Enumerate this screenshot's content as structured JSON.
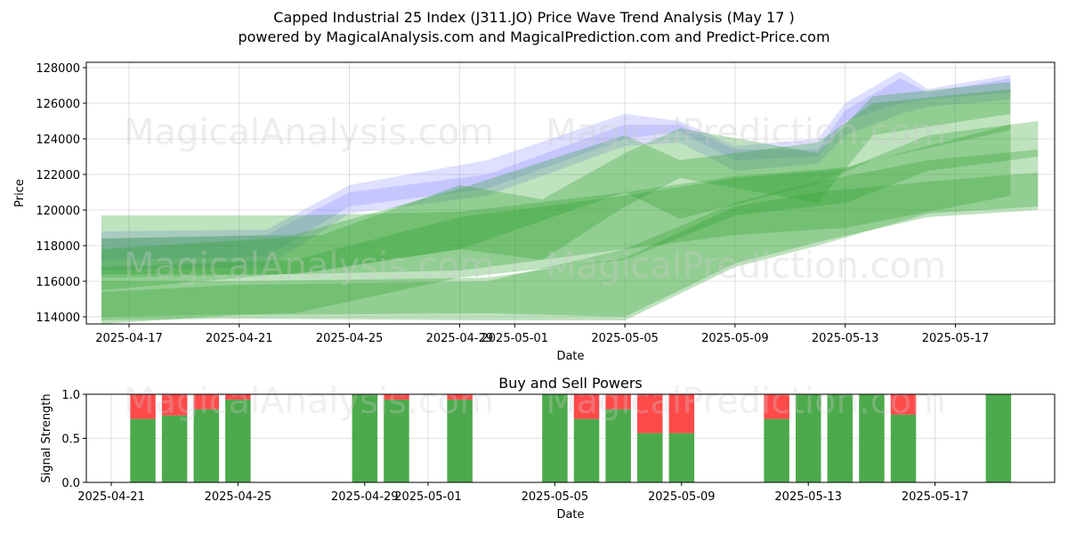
{
  "title_line1": "Capped Industrial 25 Index (J311.JO) Price Wave Trend Analysis (May 17 )",
  "title_line2": "powered by MagicalAnalysis.com and MagicalPrediction.com and Predict-Price.com",
  "watermarks": [
    "MagicalAnalysis.com",
    "MagicalPrediction.com",
    "MagicalAnalysis.com",
    "MagicalPrediction.com",
    "MagicalAnalysis.com",
    "MagicalPrediction.com"
  ],
  "colors": {
    "green": "#2ca02c",
    "blue": "#6f6fff",
    "buy": "#4caa4c",
    "sell": "#ff4a4a"
  },
  "chart_data": [
    {
      "type": "area",
      "title": "",
      "xlabel": "Date",
      "ylabel": "Price",
      "x_ticks": [
        "2025-04-17",
        "2025-04-21",
        "2025-04-25",
        "2025-04-29",
        "2025-05-01",
        "2025-05-05",
        "2025-05-09",
        "2025-05-13",
        "2025-05-17"
      ],
      "y_ticks": [
        114000,
        116000,
        118000,
        120000,
        122000,
        124000,
        126000,
        128000
      ],
      "ylim": [
        113600,
        128300
      ],
      "grid": true,
      "series": [
        {
          "color": "blue",
          "x": [
            "2025-04-16",
            "2025-04-22",
            "2025-04-25",
            "2025-04-30",
            "2025-05-05",
            "2025-05-07",
            "2025-05-09",
            "2025-05-12",
            "2025-05-13",
            "2025-05-15",
            "2025-05-16",
            "2025-05-19"
          ],
          "low": [
            116600,
            116800,
            119800,
            120800,
            123600,
            123800,
            122200,
            122600,
            124200,
            125400,
            125800,
            126200
          ],
          "high": [
            118800,
            118900,
            121400,
            122800,
            125400,
            125000,
            123600,
            124000,
            126000,
            127800,
            126800,
            127600
          ]
        },
        {
          "color": "blue",
          "x": [
            "2025-04-16",
            "2025-04-22",
            "2025-04-25",
            "2025-04-30",
            "2025-05-05",
            "2025-05-07",
            "2025-05-09",
            "2025-05-12",
            "2025-05-13",
            "2025-05-15",
            "2025-05-16",
            "2025-05-19"
          ],
          "low": [
            117200,
            117400,
            120200,
            121200,
            124000,
            124400,
            122800,
            123000,
            125000,
            126000,
            126200,
            126600
          ],
          "high": [
            118400,
            118600,
            121000,
            122000,
            124800,
            124800,
            123400,
            123400,
            125600,
            127400,
            126600,
            127400
          ]
        },
        {
          "color": "green",
          "x": [
            "2025-04-16",
            "2025-04-23",
            "2025-04-29",
            "2025-05-05",
            "2025-05-07",
            "2025-05-12",
            "2025-05-14",
            "2025-05-19"
          ],
          "low": [
            116200,
            116400,
            117800,
            121000,
            119500,
            121500,
            122800,
            124500
          ],
          "high": [
            118400,
            118600,
            121200,
            124200,
            122800,
            123800,
            126000,
            126800
          ]
        },
        {
          "color": "green",
          "x": [
            "2025-04-16",
            "2025-04-24",
            "2025-04-29",
            "2025-05-02",
            "2025-05-05",
            "2025-05-07",
            "2025-05-12",
            "2025-05-14",
            "2025-05-19"
          ],
          "low": [
            115500,
            116600,
            117800,
            117200,
            120200,
            121800,
            120400,
            124200,
            125400
          ],
          "high": [
            117800,
            118600,
            121400,
            120600,
            123200,
            124600,
            123200,
            126400,
            127200
          ]
        },
        {
          "color": "green",
          "x": [
            "2025-04-16",
            "2025-04-23",
            "2025-04-29",
            "2025-05-05",
            "2025-05-09",
            "2025-05-13",
            "2025-05-19"
          ],
          "low": [
            116400,
            116400,
            116600,
            117800,
            118600,
            119000,
            120800
          ],
          "high": [
            119700,
            119700,
            119900,
            121000,
            121900,
            122400,
            124800
          ]
        },
        {
          "color": "green",
          "x": [
            "2025-04-16",
            "2025-04-23",
            "2025-04-29",
            "2025-05-05",
            "2025-05-09",
            "2025-05-13",
            "2025-05-16",
            "2025-05-20"
          ],
          "low": [
            114000,
            114200,
            116200,
            117200,
            119700,
            120400,
            122200,
            123000
          ],
          "high": [
            116800,
            117200,
            119600,
            120800,
            121800,
            122300,
            124200,
            125000
          ]
        },
        {
          "color": "green",
          "x": [
            "2025-04-16",
            "2025-04-21",
            "2025-04-30",
            "2025-05-05",
            "2025-05-09",
            "2025-05-12",
            "2025-05-16",
            "2025-05-20"
          ],
          "low": [
            113600,
            114100,
            114200,
            114000,
            117000,
            118200,
            119600,
            120000
          ],
          "high": [
            116000,
            116000,
            116200,
            117300,
            120200,
            121000,
            121600,
            122100
          ]
        },
        {
          "color": "green",
          "x": [
            "2025-04-16",
            "2025-04-21",
            "2025-04-30",
            "2025-05-05",
            "2025-05-09",
            "2025-05-12",
            "2025-05-16",
            "2025-05-20"
          ],
          "low": [
            113800,
            113900,
            113800,
            113800,
            116800,
            118000,
            119800,
            120200
          ],
          "high": [
            115400,
            115800,
            116000,
            117800,
            120400,
            121600,
            122800,
            123400
          ]
        }
      ]
    },
    {
      "type": "bar",
      "title": "Buy and Sell Powers",
      "xlabel": "Date",
      "ylabel": "Signal Strength",
      "x_ticks": [
        "2025-04-21",
        "2025-04-25",
        "2025-04-29",
        "2025-05-01",
        "2025-05-05",
        "2025-05-09",
        "2025-05-13",
        "2025-05-17"
      ],
      "y_ticks": [
        "0.0",
        "0.5",
        "1.0"
      ],
      "ylim": [
        0,
        1
      ],
      "categories": [
        "2025-04-22",
        "2025-04-23",
        "2025-04-24",
        "2025-04-25",
        "2025-04-29",
        "2025-04-30",
        "2025-05-02",
        "2025-05-05",
        "2025-05-06",
        "2025-05-07",
        "2025-05-08",
        "2025-05-09",
        "2025-05-12",
        "2025-05-13",
        "2025-05-14",
        "2025-05-15",
        "2025-05-16",
        "2025-05-19"
      ],
      "series": [
        {
          "name": "buy",
          "values": [
            0.72,
            0.76,
            0.83,
            0.94,
            1.0,
            0.94,
            0.94,
            1.0,
            0.72,
            0.83,
            0.56,
            0.56,
            0.72,
            1.0,
            1.0,
            1.0,
            0.77,
            1.0
          ]
        },
        {
          "name": "sell",
          "values": [
            0.28,
            0.24,
            0.17,
            0.06,
            0.0,
            0.06,
            0.06,
            0.0,
            0.28,
            0.17,
            0.44,
            0.44,
            0.28,
            0.0,
            0.0,
            0.0,
            0.23,
            0.0
          ]
        }
      ]
    }
  ]
}
